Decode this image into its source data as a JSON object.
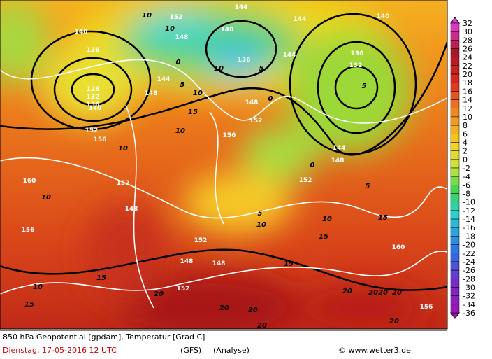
{
  "colorbar": {
    "labels": [
      32,
      30,
      28,
      26,
      24,
      22,
      20,
      18,
      16,
      14,
      12,
      10,
      8,
      6,
      4,
      2,
      0,
      -2,
      -4,
      -6,
      -8,
      -10,
      -12,
      -14,
      -16,
      -18,
      -20,
      -22,
      -24,
      -26,
      -28,
      -30,
      -32,
      -34,
      -36
    ]
  },
  "height_labels": [
    "140",
    "136",
    "128",
    "132",
    "136",
    "140",
    "152",
    "156",
    "160",
    "156",
    "148",
    "152",
    "152",
    "148",
    "148",
    "152",
    "156",
    "160",
    "152",
    "148",
    "144",
    "152",
    "156",
    "148",
    "148",
    "144",
    "148",
    "152",
    "144",
    "140",
    "136",
    "144",
    "144",
    "140",
    "136",
    "132"
  ],
  "temperature_labels": [
    "10",
    "10",
    "0",
    "5",
    "10",
    "15",
    "10",
    "10",
    "10",
    "10",
    "15",
    "15",
    "20",
    "20",
    "20",
    "20",
    "20",
    "2020",
    "20",
    "20",
    "15",
    "15",
    "10",
    "15",
    "5",
    "5",
    "10",
    "5",
    "5",
    "10",
    "0",
    "0"
  ],
  "footer": {
    "title": "850 hPa Geopotential [gpdam], Temperatur [Grad C]",
    "date": "Dienstag, 17-05-2016  12 UTC",
    "model": "(GFS)",
    "run": "(Analyse)",
    "credit": "© www.wetter3.de"
  }
}
